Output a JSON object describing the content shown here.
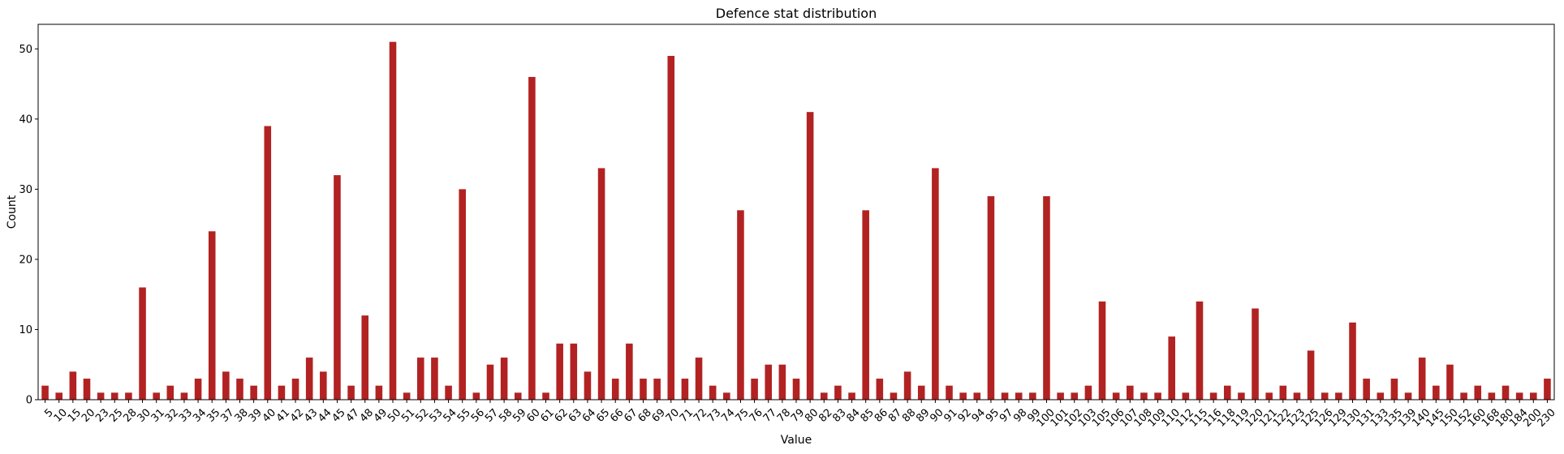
{
  "chart_data": {
    "type": "bar",
    "title": "Defence stat distribution",
    "xlabel": "Value",
    "ylabel": "Count",
    "ylim": [
      0,
      53.5
    ],
    "yticks": [
      0,
      10,
      20,
      30,
      40,
      50
    ],
    "bar_color": "#b22222",
    "categories": [
      "5",
      "10",
      "15",
      "20",
      "23",
      "25",
      "28",
      "30",
      "31",
      "32",
      "33",
      "34",
      "35",
      "37",
      "38",
      "39",
      "40",
      "41",
      "42",
      "43",
      "44",
      "45",
      "47",
      "48",
      "49",
      "50",
      "51",
      "52",
      "53",
      "54",
      "55",
      "56",
      "57",
      "58",
      "59",
      "60",
      "61",
      "62",
      "63",
      "64",
      "65",
      "66",
      "67",
      "68",
      "69",
      "70",
      "71",
      "72",
      "73",
      "74",
      "75",
      "76",
      "77",
      "78",
      "79",
      "80",
      "82",
      "83",
      "84",
      "85",
      "86",
      "87",
      "88",
      "89",
      "90",
      "91",
      "92",
      "94",
      "95",
      "97",
      "98",
      "99",
      "100",
      "101",
      "102",
      "103",
      "105",
      "106",
      "107",
      "108",
      "109",
      "110",
      "112",
      "115",
      "116",
      "118",
      "119",
      "120",
      "121",
      "122",
      "123",
      "125",
      "126",
      "129",
      "130",
      "131",
      "133",
      "135",
      "139",
      "140",
      "145",
      "150",
      "152",
      "160",
      "168",
      "180",
      "184",
      "200",
      "230"
    ],
    "values": [
      2,
      1,
      4,
      3,
      1,
      1,
      1,
      16,
      1,
      2,
      1,
      3,
      24,
      4,
      3,
      2,
      39,
      2,
      3,
      6,
      4,
      32,
      2,
      12,
      2,
      51,
      1,
      6,
      6,
      2,
      30,
      1,
      5,
      6,
      1,
      46,
      1,
      8,
      8,
      4,
      33,
      3,
      8,
      3,
      3,
      49,
      3,
      6,
      2,
      1,
      27,
      3,
      5,
      5,
      3,
      41,
      1,
      2,
      1,
      27,
      3,
      1,
      4,
      2,
      33,
      2,
      1,
      1,
      29,
      1,
      1,
      1,
      29,
      1,
      1,
      2,
      14,
      1,
      2,
      1,
      1,
      9,
      1,
      14,
      1,
      2,
      1,
      13,
      1,
      2,
      1,
      7,
      1,
      1,
      11,
      3,
      1,
      3,
      1,
      6,
      2,
      5,
      1,
      2,
      1,
      2,
      1,
      1,
      3
    ]
  }
}
